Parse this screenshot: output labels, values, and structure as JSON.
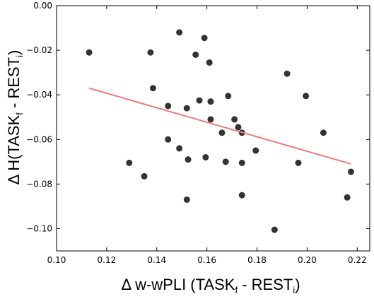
{
  "chart_data": {
    "type": "scatter",
    "xlabel": {
      "prefix": "Δ w-wPLI (TASK",
      "sub1": "f",
      "middle": " - REST",
      "sub2": "i",
      "suffix": ")"
    },
    "ylabel": {
      "prefix": "Δ H(TASK",
      "sub1": "f",
      "middle": " - REST",
      "sub2": "i",
      "suffix": ")"
    },
    "xlim": [
      0.1,
      0.225
    ],
    "ylim": [
      -0.11,
      0.0
    ],
    "x_ticks": [
      0.1,
      0.12,
      0.14,
      0.16,
      0.18,
      0.2,
      0.22
    ],
    "x_tick_labels": [
      "0.10",
      "0.12",
      "0.14",
      "0.16",
      "0.18",
      "0.20",
      "0.22"
    ],
    "y_ticks": [
      0.0,
      -0.02,
      -0.04,
      -0.06,
      -0.08,
      -0.1
    ],
    "y_tick_labels": [
      "0.00",
      "−0.02",
      "−0.04",
      "−0.06",
      "−0.08",
      "−0.10"
    ],
    "grid": false,
    "points": [
      {
        "x": 0.113,
        "y": -0.021
      },
      {
        "x": 0.129,
        "y": -0.0705
      },
      {
        "x": 0.135,
        "y": -0.0765
      },
      {
        "x": 0.1375,
        "y": -0.021
      },
      {
        "x": 0.1385,
        "y": -0.037
      },
      {
        "x": 0.1445,
        "y": -0.045
      },
      {
        "x": 0.1445,
        "y": -0.06
      },
      {
        "x": 0.149,
        "y": -0.012
      },
      {
        "x": 0.149,
        "y": -0.064
      },
      {
        "x": 0.152,
        "y": -0.046
      },
      {
        "x": 0.1525,
        "y": -0.069
      },
      {
        "x": 0.152,
        "y": -0.087
      },
      {
        "x": 0.1555,
        "y": -0.022
      },
      {
        "x": 0.157,
        "y": -0.0425
      },
      {
        "x": 0.159,
        "y": -0.0145
      },
      {
        "x": 0.1595,
        "y": -0.068
      },
      {
        "x": 0.161,
        "y": -0.0255
      },
      {
        "x": 0.1615,
        "y": -0.043
      },
      {
        "x": 0.1615,
        "y": -0.051
      },
      {
        "x": 0.166,
        "y": -0.057
      },
      {
        "x": 0.1675,
        "y": -0.07
      },
      {
        "x": 0.1685,
        "y": -0.0405
      },
      {
        "x": 0.171,
        "y": -0.051
      },
      {
        "x": 0.1725,
        "y": -0.0545
      },
      {
        "x": 0.174,
        "y": -0.057
      },
      {
        "x": 0.174,
        "y": -0.0705
      },
      {
        "x": 0.174,
        "y": -0.085
      },
      {
        "x": 0.1795,
        "y": -0.065
      },
      {
        "x": 0.187,
        "y": -0.1005
      },
      {
        "x": 0.192,
        "y": -0.0305
      },
      {
        "x": 0.1965,
        "y": -0.0705
      },
      {
        "x": 0.1995,
        "y": -0.0405
      },
      {
        "x": 0.2065,
        "y": -0.057
      },
      {
        "x": 0.216,
        "y": -0.086
      },
      {
        "x": 0.2175,
        "y": -0.0745
      }
    ],
    "trendline": {
      "x": [
        0.113,
        0.2175
      ],
      "y": [
        -0.037,
        -0.071
      ]
    },
    "colors": {
      "point": "#333333",
      "trendline": "#f07a7a",
      "axis": "#000000"
    }
  }
}
